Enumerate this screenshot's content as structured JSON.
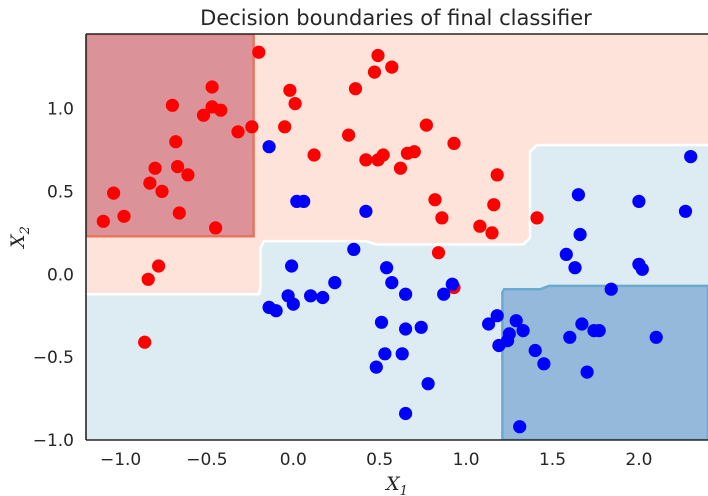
{
  "chart_data": {
    "type": "scatter",
    "title": "Decision boundaries of final classifier",
    "xlabel": {
      "base": "X",
      "sub": "1"
    },
    "ylabel": {
      "base": "X",
      "sub": "2"
    },
    "xlim": [
      -1.2,
      2.4
    ],
    "ylim": [
      -1.0,
      1.45
    ],
    "xticks": [
      -1.0,
      -0.5,
      0.0,
      0.5,
      1.0,
      1.5,
      2.0
    ],
    "xtick_labels": [
      "−1.0",
      "−0.5",
      "0.0",
      "0.5",
      "1.0",
      "1.5",
      "2.0"
    ],
    "yticks": [
      -1.0,
      -0.5,
      0.0,
      0.5,
      1.0
    ],
    "ytick_labels": [
      "−1.0",
      "−0.5",
      "0.0",
      "0.5",
      "1.0"
    ],
    "grid": false,
    "regions": [
      {
        "name": "strong-red",
        "color": "#db9399",
        "edge": "#e8735f",
        "polygon": [
          [
            -1.2,
            1.45
          ],
          [
            -0.23,
            1.45
          ],
          [
            -0.23,
            0.23
          ],
          [
            -1.2,
            0.23
          ]
        ]
      },
      {
        "name": "strong-blue",
        "color": "#94b9da",
        "edge": "#6aaad0",
        "polygon": [
          [
            1.21,
            -1.0
          ],
          [
            2.4,
            -1.0
          ],
          [
            2.4,
            -0.07
          ],
          [
            1.48,
            -0.07
          ],
          [
            1.43,
            -0.09
          ],
          [
            1.22,
            -0.09
          ],
          [
            1.21,
            -0.11
          ]
        ]
      }
    ],
    "boundary": {
      "red_color": "#fde3da",
      "blue_color": "#ddebf3",
      "line_color": "#ffffff",
      "polyline": [
        [
          -1.2,
          -0.12
        ],
        [
          -0.2,
          -0.12
        ],
        [
          -0.19,
          -0.08
        ],
        [
          -0.19,
          0.16
        ],
        [
          -0.17,
          0.2
        ],
        [
          0.42,
          0.2
        ],
        [
          0.48,
          0.18
        ],
        [
          1.33,
          0.18
        ],
        [
          1.37,
          0.22
        ],
        [
          1.37,
          0.74
        ],
        [
          1.41,
          0.78
        ],
        [
          2.4,
          0.78
        ]
      ]
    },
    "series": [
      {
        "color": "#ff0000",
        "points": [
          [
            -1.1,
            0.32
          ],
          [
            -1.04,
            0.49
          ],
          [
            -0.98,
            0.35
          ],
          [
            -0.86,
            -0.41
          ],
          [
            -0.84,
            -0.03
          ],
          [
            -0.83,
            0.55
          ],
          [
            -0.8,
            0.64
          ],
          [
            -0.78,
            0.05
          ],
          [
            -0.76,
            0.5
          ],
          [
            -0.7,
            1.02
          ],
          [
            -0.68,
            0.8
          ],
          [
            -0.67,
            0.65
          ],
          [
            -0.66,
            0.37
          ],
          [
            -0.61,
            0.6
          ],
          [
            -0.52,
            0.96
          ],
          [
            -0.47,
            1.13
          ],
          [
            -0.47,
            1.01
          ],
          [
            -0.45,
            0.28
          ],
          [
            -0.42,
            0.99
          ],
          [
            -0.32,
            0.86
          ],
          [
            -0.24,
            0.89
          ],
          [
            -0.2,
            1.34
          ],
          [
            -0.05,
            0.89
          ],
          [
            -0.02,
            1.11
          ],
          [
            0.01,
            1.03
          ],
          [
            0.12,
            0.72
          ],
          [
            0.32,
            0.84
          ],
          [
            0.36,
            1.12
          ],
          [
            0.42,
            0.69
          ],
          [
            0.47,
            1.22
          ],
          [
            0.49,
            1.32
          ],
          [
            0.49,
            0.69
          ],
          [
            0.52,
            0.72
          ],
          [
            0.57,
            1.25
          ],
          [
            0.62,
            0.64
          ],
          [
            0.66,
            0.73
          ],
          [
            0.7,
            0.74
          ],
          [
            0.77,
            0.9
          ],
          [
            0.82,
            0.45
          ],
          [
            0.84,
            0.13
          ],
          [
            0.86,
            0.34
          ],
          [
            0.93,
            0.79
          ],
          [
            0.93,
            -0.08
          ],
          [
            1.08,
            0.29
          ],
          [
            1.15,
            0.25
          ],
          [
            1.16,
            0.42
          ],
          [
            1.18,
            0.6
          ],
          [
            1.41,
            0.34
          ]
        ]
      },
      {
        "color": "#0000ff",
        "points": [
          [
            -0.14,
            0.77
          ],
          [
            -0.14,
            -0.2
          ],
          [
            -0.1,
            -0.22
          ],
          [
            -0.03,
            -0.13
          ],
          [
            -0.01,
            0.05
          ],
          [
            0.0,
            -0.18
          ],
          [
            0.02,
            0.44
          ],
          [
            0.06,
            0.44
          ],
          [
            0.1,
            -0.13
          ],
          [
            0.17,
            -0.14
          ],
          [
            0.24,
            -0.05
          ],
          [
            0.35,
            0.15
          ],
          [
            0.42,
            0.38
          ],
          [
            0.48,
            -0.56
          ],
          [
            0.51,
            -0.29
          ],
          [
            0.53,
            -0.48
          ],
          [
            0.54,
            0.04
          ],
          [
            0.57,
            -0.05
          ],
          [
            0.63,
            -0.48
          ],
          [
            0.65,
            -0.12
          ],
          [
            0.65,
            -0.33
          ],
          [
            0.65,
            -0.84
          ],
          [
            0.74,
            -0.32
          ],
          [
            0.78,
            -0.66
          ],
          [
            0.87,
            -0.12
          ],
          [
            0.92,
            -0.06
          ],
          [
            1.13,
            -0.3
          ],
          [
            1.18,
            -0.25
          ],
          [
            1.19,
            -0.43
          ],
          [
            1.24,
            -0.4
          ],
          [
            1.25,
            -0.36
          ],
          [
            1.29,
            -0.28
          ],
          [
            1.31,
            -0.92
          ],
          [
            1.33,
            -0.34
          ],
          [
            1.4,
            -0.46
          ],
          [
            1.45,
            -0.54
          ],
          [
            1.58,
            0.12
          ],
          [
            1.6,
            -0.38
          ],
          [
            1.63,
            0.04
          ],
          [
            1.65,
            0.48
          ],
          [
            1.66,
            0.24
          ],
          [
            1.67,
            -0.3
          ],
          [
            1.7,
            -0.59
          ],
          [
            1.74,
            -0.34
          ],
          [
            1.77,
            -0.34
          ],
          [
            1.84,
            -0.09
          ],
          [
            2.0,
            0.44
          ],
          [
            2.0,
            0.06
          ],
          [
            2.02,
            0.03
          ],
          [
            2.1,
            -0.38
          ],
          [
            2.27,
            0.38
          ],
          [
            2.3,
            0.71
          ]
        ]
      }
    ]
  }
}
